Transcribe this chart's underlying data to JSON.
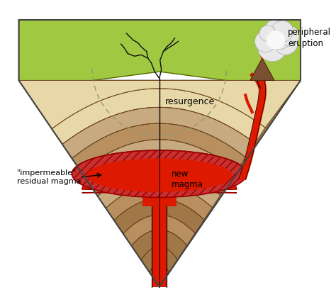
{
  "colors": {
    "white": "#ffffff",
    "grass": "#a0c840",
    "grass_dark": "#7aaa20",
    "sand": "#e8d8a8",
    "caldera_light": "#ddd0a0",
    "layer_tan": "#c8aa80",
    "layer_mid": "#b89060",
    "layer_dark": "#a07848",
    "layer_deep": "#8a6035",
    "layer_darker": "#785028",
    "magma_red": "#dd1a00",
    "magma_bright": "#ff2200",
    "magma_outline": "#990000",
    "hatch_fill": "#c83030",
    "crack_color": "#222222",
    "dashed_color": "#909878",
    "cloud_light": "#e8e8e8",
    "cloud_white": "#f8f8f8",
    "volcano_brown": "#7a5030",
    "border": "#333333"
  },
  "labels": {
    "resurgence": "resurgence",
    "new_magma": "new\nmagma",
    "impermeable": "\"impermeable\"\nresidual magma",
    "peripheral": "peripheral\neruption"
  },
  "figsize": [
    4.74,
    4.26
  ],
  "dpi": 100
}
